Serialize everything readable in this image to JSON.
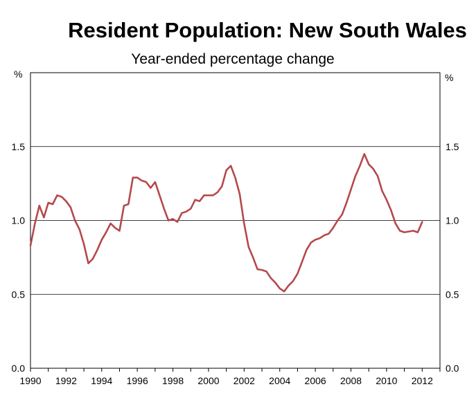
{
  "chart_data": {
    "type": "line",
    "title": "Resident Population: New South Wales",
    "subtitle": "Year-ended percentage change",
    "y_unit_left": "%",
    "y_unit_right": "%",
    "xlim": [
      1990,
      2013
    ],
    "ylim": [
      0,
      2
    ],
    "x_ticks": [
      1990,
      1992,
      1994,
      1996,
      1998,
      2000,
      2002,
      2004,
      2006,
      2008,
      2010,
      2012
    ],
    "x_tick_labels": [
      "1990",
      "1992",
      "1994",
      "1996",
      "1998",
      "2000",
      "2002",
      "2004",
      "2006",
      "2008",
      "2010",
      "2012"
    ],
    "y_ticks": [
      0,
      0.5,
      1,
      1.5
    ],
    "y_tick_labels": [
      "0.0",
      "0.5",
      "1.0",
      "1.5"
    ],
    "grid": "horizontal",
    "line_color": "#b5484b",
    "series": [
      {
        "x": [
          1990.0,
          1990.25,
          1990.5,
          1990.75,
          1991.0,
          1991.25,
          1991.5,
          1991.75,
          1992.0,
          1992.25,
          1992.5,
          1992.75,
          1993.0,
          1993.25,
          1993.5,
          1993.75,
          1994.0,
          1994.25,
          1994.5,
          1994.75,
          1995.0,
          1995.25,
          1995.5,
          1995.75,
          1996.0,
          1996.25,
          1996.5,
          1996.75,
          1997.0,
          1997.25,
          1997.5,
          1997.75,
          1998.0,
          1998.25,
          1998.5,
          1998.75,
          1999.0,
          1999.25,
          1999.5,
          1999.75,
          2000.0,
          2000.25,
          2000.5,
          2000.75,
          2001.0,
          2001.25,
          2001.5,
          2001.75,
          2002.0,
          2002.25,
          2002.5,
          2002.75,
          2003.0,
          2003.25,
          2003.5,
          2003.75,
          2004.0,
          2004.25,
          2004.5,
          2004.75,
          2005.0,
          2005.25,
          2005.5,
          2005.75,
          2006.0,
          2006.25,
          2006.5,
          2006.75,
          2007.0,
          2007.25,
          2007.5,
          2007.75,
          2008.0,
          2008.25,
          2008.5,
          2008.75,
          2009.0,
          2009.25,
          2009.5,
          2009.75,
          2010.0,
          2010.25,
          2010.5,
          2010.75,
          2011.0,
          2011.25,
          2011.5,
          2011.75,
          2012.0
        ],
        "values": [
          0.83,
          0.98,
          1.1,
          1.02,
          1.12,
          1.11,
          1.17,
          1.16,
          1.13,
          1.09,
          1.0,
          0.94,
          0.84,
          0.71,
          0.74,
          0.8,
          0.87,
          0.92,
          0.98,
          0.95,
          0.93,
          1.1,
          1.11,
          1.29,
          1.29,
          1.27,
          1.26,
          1.22,
          1.26,
          1.17,
          1.08,
          1.0,
          1.01,
          0.99,
          1.05,
          1.06,
          1.08,
          1.14,
          1.13,
          1.17,
          1.17,
          1.17,
          1.19,
          1.23,
          1.34,
          1.37,
          1.29,
          1.18,
          0.98,
          0.82,
          0.75,
          0.67,
          0.665,
          0.655,
          0.61,
          0.58,
          0.54,
          0.52,
          0.56,
          0.59,
          0.64,
          0.72,
          0.8,
          0.85,
          0.87,
          0.88,
          0.9,
          0.91,
          0.95,
          1.0,
          1.04,
          1.12,
          1.21,
          1.3,
          1.37,
          1.45,
          1.38,
          1.35,
          1.3,
          1.2,
          1.14,
          1.07,
          0.98,
          0.93,
          0.92,
          0.925,
          0.93,
          0.92,
          0.99
        ]
      }
    ]
  }
}
